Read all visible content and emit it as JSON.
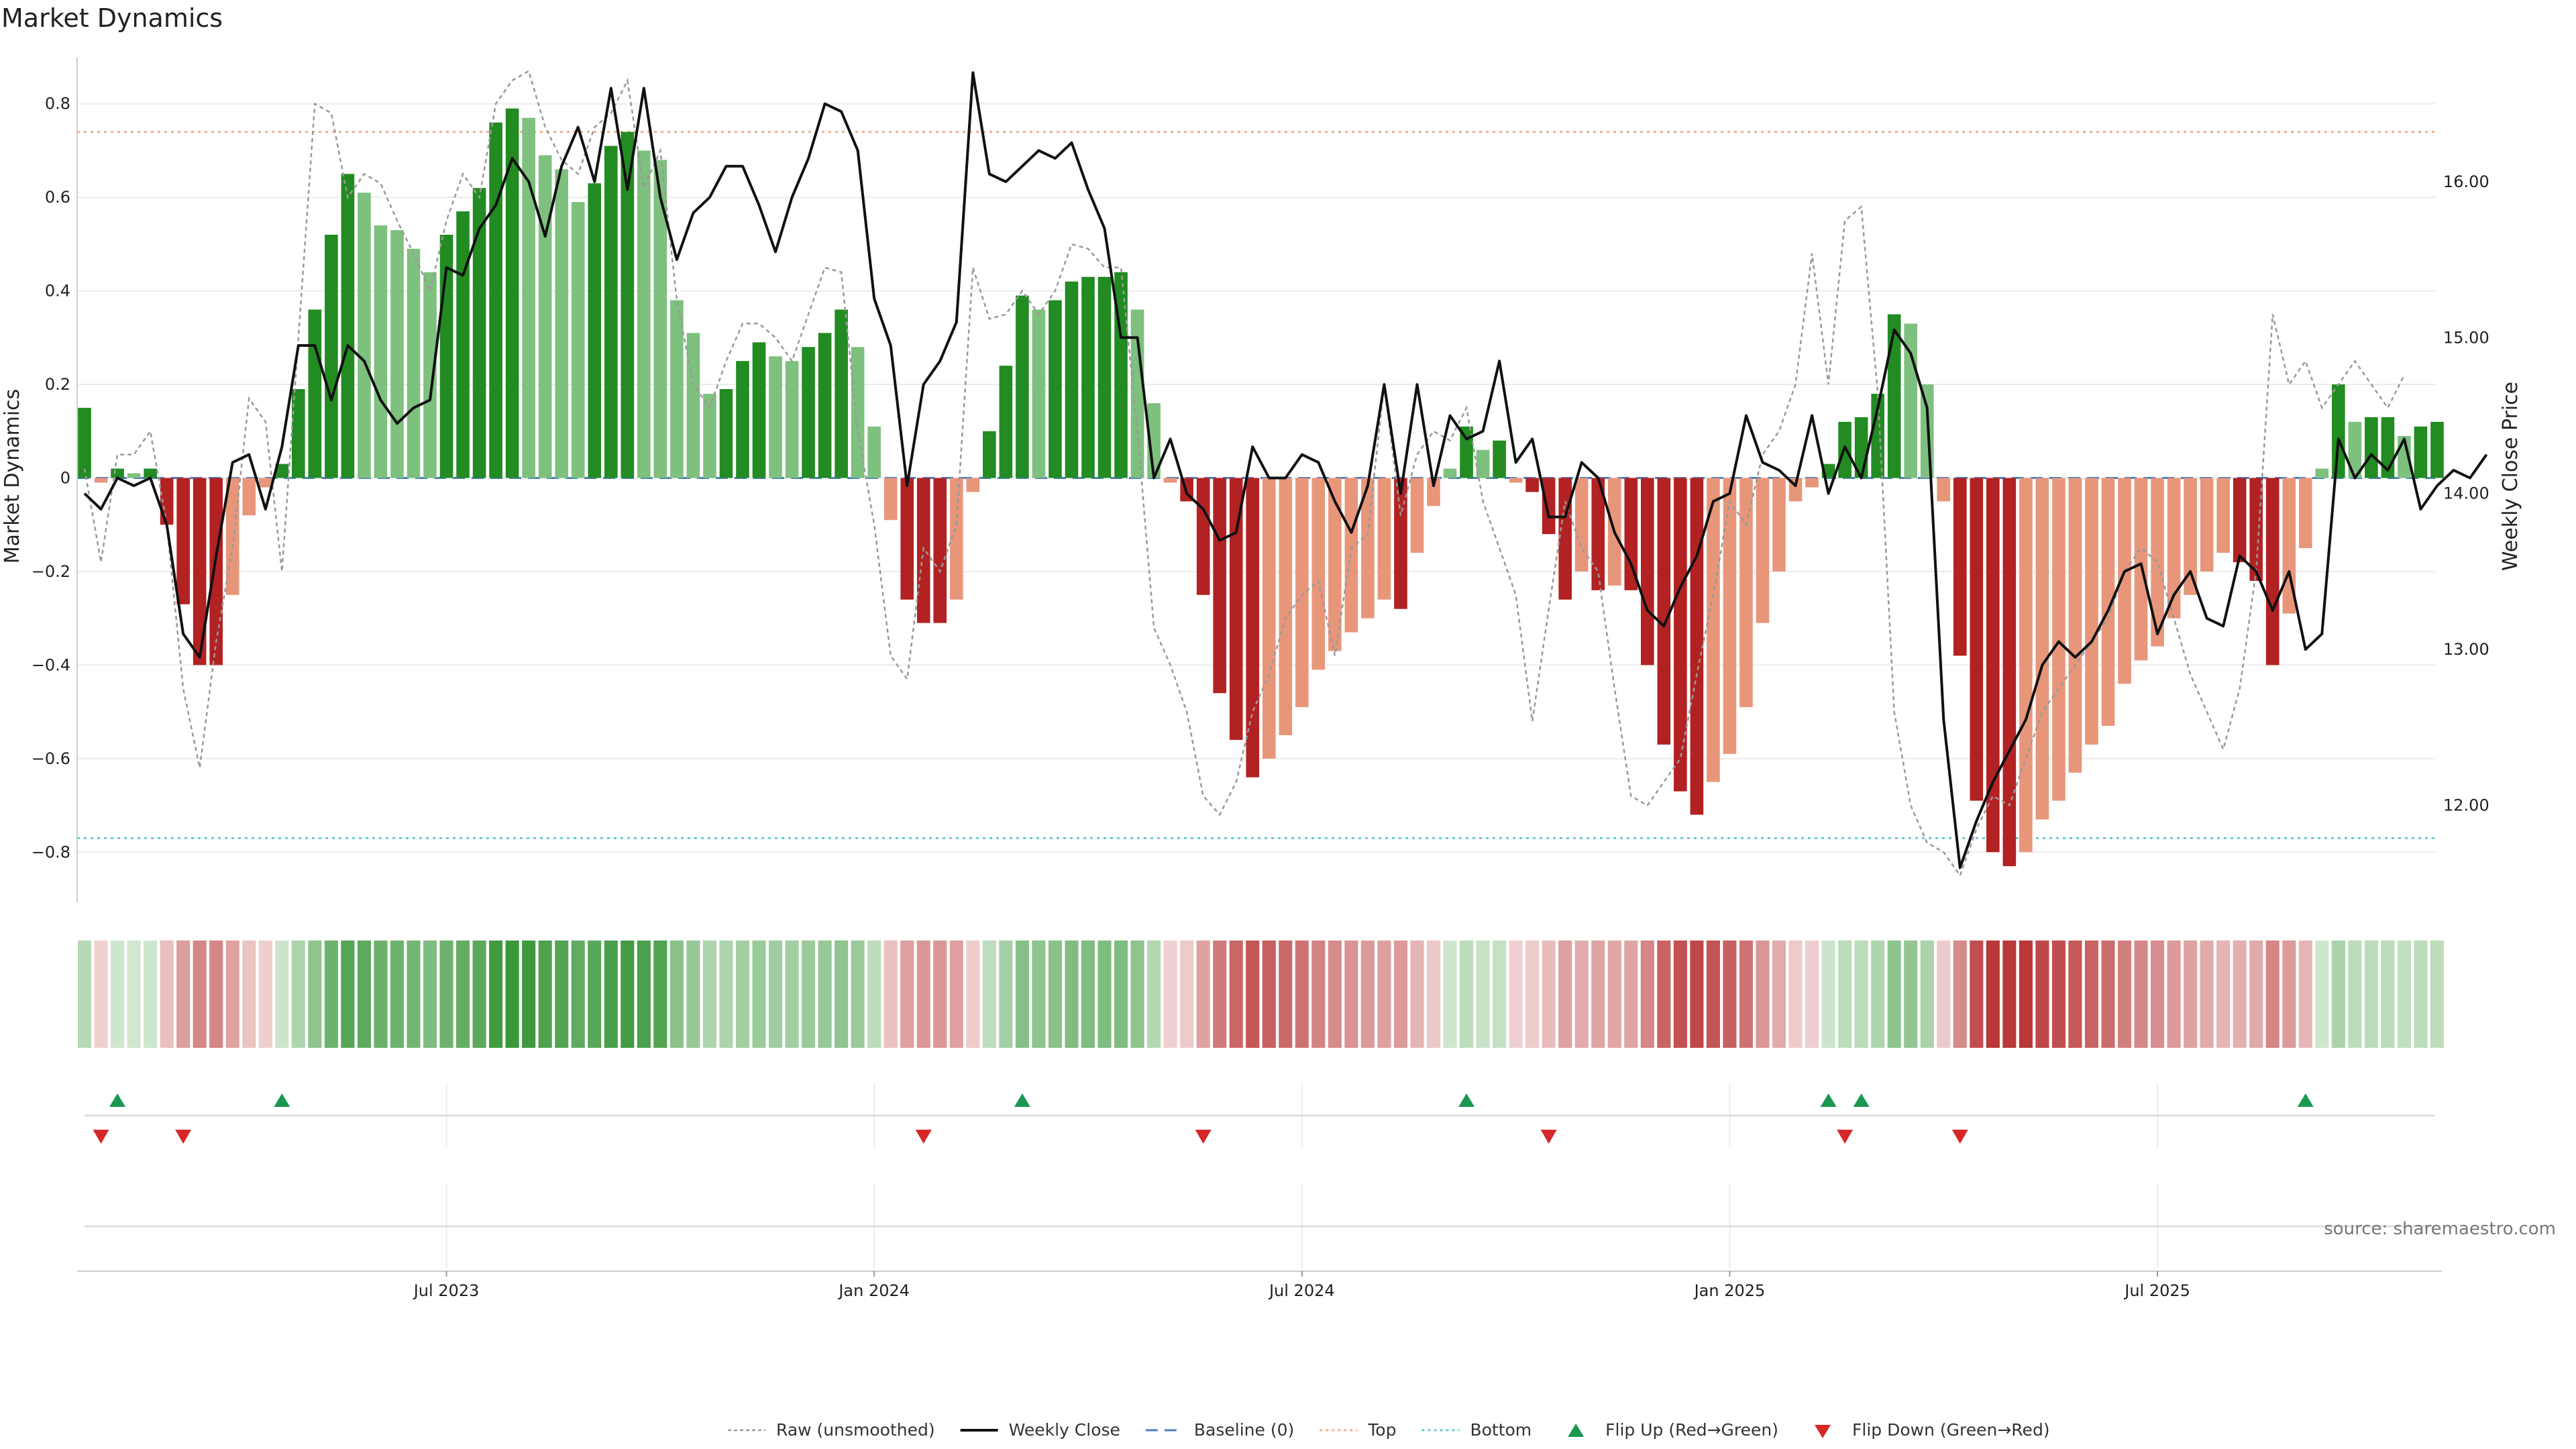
{
  "chart_data": {
    "type": "bar",
    "title": "Market Dynamics",
    "ylabel": "Market Dynamics",
    "y2label": "Weekly Close Price",
    "source": "source: sharemaestro.com",
    "ylim": [
      -0.9,
      0.9
    ],
    "y2lim": [
      11.4,
      16.8
    ],
    "yticks": [
      0.8,
      0.6,
      0.4,
      0.2,
      0,
      -0.2,
      -0.4,
      -0.6,
      -0.8
    ],
    "ytick_labels": [
      "0.8",
      "0.6",
      "0.4",
      "0.2",
      "0",
      "−0.2",
      "−0.4",
      "−0.6",
      "−0.8"
    ],
    "y2ticks": [
      16,
      15,
      14,
      13,
      12
    ],
    "y2tick_labels": [
      "16.00",
      "15.00",
      "14.00",
      "13.00",
      "12.00"
    ],
    "xticks": [
      {
        "index": 22,
        "label": "Jul 2023"
      },
      {
        "index": 48,
        "label": "Jan 2024"
      },
      {
        "index": 74,
        "label": "Jul 2024"
      },
      {
        "index": 100,
        "label": "Jan 2025"
      },
      {
        "index": 126,
        "label": "Jul 2025"
      }
    ],
    "top_line": 0.74,
    "bottom_line": -0.77,
    "baseline": 0,
    "grid": true,
    "bars": [
      0.15,
      -0.01,
      0.02,
      0.01,
      0.02,
      -0.1,
      -0.27,
      -0.4,
      -0.4,
      -0.25,
      -0.08,
      -0.02,
      0.03,
      0.19,
      0.36,
      0.52,
      0.65,
      0.61,
      0.54,
      0.53,
      0.49,
      0.44,
      0.52,
      0.57,
      0.62,
      0.76,
      0.79,
      0.77,
      0.69,
      0.66,
      0.59,
      0.63,
      0.71,
      0.74,
      0.7,
      0.68,
      0.38,
      0.31,
      0.18,
      0.19,
      0.25,
      0.29,
      0.26,
      0.25,
      0.28,
      0.31,
      0.36,
      0.28,
      0.11,
      -0.09,
      -0.26,
      -0.31,
      -0.31,
      -0.26,
      -0.03,
      0.1,
      0.24,
      0.39,
      0.36,
      0.38,
      0.42,
      0.43,
      0.43,
      0.44,
      0.36,
      0.16,
      -0.01,
      -0.05,
      -0.25,
      -0.46,
      -0.56,
      -0.64,
      -0.6,
      -0.55,
      -0.49,
      -0.41,
      -0.37,
      -0.33,
      -0.3,
      -0.26,
      -0.28,
      -0.16,
      -0.06,
      0.02,
      0.11,
      0.06,
      0.08,
      -0.01,
      -0.03,
      -0.12,
      -0.26,
      -0.2,
      -0.24,
      -0.23,
      -0.24,
      -0.4,
      -0.57,
      -0.67,
      -0.72,
      -0.65,
      -0.59,
      -0.49,
      -0.31,
      -0.2,
      -0.05,
      -0.02,
      0.03,
      0.12,
      0.13,
      0.18,
      0.35,
      0.33,
      0.2,
      -0.05,
      -0.38,
      -0.69,
      -0.8,
      -0.83,
      -0.8,
      -0.73,
      -0.69,
      -0.63,
      -0.57,
      -0.53,
      -0.44,
      -0.39,
      -0.36,
      -0.3,
      -0.25,
      -0.2,
      -0.16,
      -0.18,
      -0.22,
      -0.4,
      -0.29,
      -0.15,
      0.02,
      0.2,
      0.12,
      0.13,
      0.13,
      0.09,
      0.11,
      0.12
    ],
    "weekly_close": [
      14.0,
      13.9,
      14.1,
      14.05,
      14.1,
      13.8,
      13.1,
      12.95,
      13.6,
      14.2,
      14.25,
      13.9,
      14.3,
      14.95,
      14.95,
      14.6,
      14.95,
      14.85,
      14.6,
      14.45,
      14.55,
      14.6,
      15.45,
      15.4,
      15.7,
      15.85,
      16.15,
      16.0,
      15.65,
      16.1,
      16.35,
      16.0,
      16.6,
      15.95,
      16.6,
      15.9,
      15.5,
      15.8,
      15.9,
      16.1,
      16.1,
      15.85,
      15.55,
      15.9,
      16.15,
      16.5,
      16.45,
      16.2,
      15.25,
      14.95,
      14.05,
      14.7,
      14.85,
      15.1,
      16.7,
      16.05,
      16.0,
      16.1,
      16.2,
      16.15,
      16.25,
      15.95,
      15.7,
      15.0,
      15.0,
      14.1,
      14.35,
      14.0,
      13.9,
      13.7,
      13.75,
      14.3,
      14.1,
      14.1,
      14.25,
      14.2,
      13.95,
      13.75,
      14.05,
      14.7,
      14.0,
      14.7,
      14.05,
      14.5,
      14.35,
      14.4,
      14.85,
      14.2,
      14.35,
      13.85,
      13.85,
      14.2,
      14.1,
      13.75,
      13.55,
      13.25,
      13.15,
      13.4,
      13.6,
      13.95,
      14.0,
      14.5,
      14.2,
      14.15,
      14.05,
      14.5,
      14.0,
      14.3,
      14.1,
      14.55,
      15.05,
      14.9,
      14.55,
      12.55,
      11.6,
      11.9,
      12.15,
      12.35,
      12.55,
      12.9,
      13.05,
      12.95,
      13.05,
      13.25,
      13.5,
      13.55,
      13.1,
      13.35,
      13.5,
      13.2,
      13.15,
      13.6,
      13.5,
      13.25,
      13.5,
      13.0,
      13.1,
      14.35,
      14.1,
      14.25,
      14.15,
      14.35,
      13.9,
      14.05,
      14.15,
      14.1,
      14.25
    ],
    "raw": [
      0.02,
      -0.18,
      0.05,
      0.05,
      0.1,
      -0.1,
      -0.45,
      -0.62,
      -0.35,
      -0.15,
      0.17,
      0.12,
      -0.2,
      0.3,
      0.8,
      0.78,
      0.6,
      0.65,
      0.63,
      0.55,
      0.48,
      0.4,
      0.55,
      0.65,
      0.6,
      0.8,
      0.85,
      0.87,
      0.75,
      0.68,
      0.65,
      0.75,
      0.78,
      0.85,
      0.62,
      0.7,
      0.38,
      0.2,
      0.15,
      0.25,
      0.33,
      0.33,
      0.3,
      0.25,
      0.35,
      0.45,
      0.44,
      0.1,
      -0.1,
      -0.38,
      -0.43,
      -0.15,
      -0.2,
      -0.1,
      0.45,
      0.34,
      0.35,
      0.4,
      0.35,
      0.4,
      0.5,
      0.49,
      0.45,
      0.45,
      0.1,
      -0.32,
      -0.4,
      -0.5,
      -0.68,
      -0.72,
      -0.65,
      -0.5,
      -0.42,
      -0.3,
      -0.25,
      -0.22,
      -0.38,
      -0.15,
      -0.12,
      0.2,
      -0.08,
      0.05,
      0.1,
      0.08,
      0.15,
      -0.05,
      -0.15,
      -0.25,
      -0.52,
      -0.28,
      -0.05,
      -0.15,
      -0.2,
      -0.45,
      -0.68,
      -0.7,
      -0.65,
      -0.6,
      -0.42,
      -0.25,
      -0.05,
      -0.1,
      0.05,
      0.1,
      0.2,
      0.48,
      0.2,
      0.55,
      0.58,
      0.18,
      -0.5,
      -0.7,
      -0.78,
      -0.8,
      -0.85,
      -0.75,
      -0.68,
      -0.7,
      -0.6,
      -0.5,
      -0.45,
      -0.4,
      -0.35,
      -0.3,
      -0.2,
      -0.15,
      -0.18,
      -0.3,
      -0.42,
      -0.5,
      -0.58,
      -0.45,
      -0.2,
      0.35,
      0.2,
      0.25,
      0.15,
      0.2,
      0.25,
      0.2,
      0.15,
      0.22
    ],
    "flip_up_indices": [
      2,
      12,
      57,
      84,
      106,
      108,
      135
    ],
    "flip_down_indices": [
      1,
      6,
      51,
      68,
      89,
      107,
      114
    ],
    "legend": {
      "position": "bottom-center",
      "entries": [
        {
          "label": "Raw (unsmoothed)",
          "style": "dotted-gray"
        },
        {
          "label": "Weekly Close",
          "style": "solid-black"
        },
        {
          "label": "Baseline (0)",
          "style": "dashed-blue"
        },
        {
          "label": "Top",
          "style": "dotted-salmon"
        },
        {
          "label": "Bottom",
          "style": "dotted-teal"
        },
        {
          "label": "Flip Up (Red→Green)",
          "style": "triangle-up-green"
        },
        {
          "label": "Flip Down (Green→Red)",
          "style": "triangle-down-red"
        }
      ]
    }
  },
  "colors": {
    "strong_green": "#228b22",
    "light_green": "#7ec07e",
    "strong_red": "#b22222",
    "light_red": "#e8967a",
    "raw_line": "#999999",
    "close_line": "#111111",
    "baseline": "#4a7fc0",
    "top_line": "#f0b090",
    "bottom_line": "#6cc8d0",
    "flip_up": "#1a9850",
    "flip_down": "#d62728"
  }
}
